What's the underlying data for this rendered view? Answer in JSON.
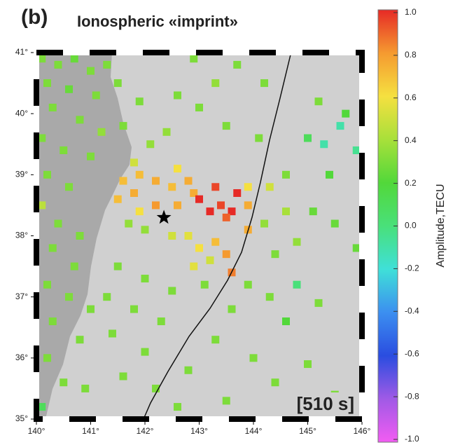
{
  "chart_data": {
    "type": "scatter",
    "panel_label": "(b)",
    "title": "Ionospheric «imprint»",
    "annotation": "[510 s]",
    "colorbar_label": "Amplitude,TECU",
    "xlim": [
      140,
      146
    ],
    "ylim": [
      35,
      41
    ],
    "xticks": [
      {
        "value": 140,
        "label": "140°"
      },
      {
        "value": 141,
        "label": "141°"
      },
      {
        "value": 142,
        "label": "142°"
      },
      {
        "value": 143,
        "label": "143°"
      },
      {
        "value": 144,
        "label": "144°"
      },
      {
        "value": 145,
        "label": "145°"
      },
      {
        "value": 146,
        "label": "146°"
      }
    ],
    "yticks": [
      {
        "value": 35,
        "label": "35°"
      },
      {
        "value": 36,
        "label": "36°"
      },
      {
        "value": 37,
        "label": "37°"
      },
      {
        "value": 38,
        "label": "38°"
      },
      {
        "value": 39,
        "label": "39°"
      },
      {
        "value": 40,
        "label": "40°"
      },
      {
        "value": 41,
        "label": "41°"
      }
    ],
    "clim": [
      -1,
      1
    ],
    "cticks": [
      {
        "value": 1,
        "label": "1.0"
      },
      0.8,
      0.6,
      0.4,
      0.2,
      {
        "value": 0,
        "label": "0.0"
      },
      -0.2,
      -0.4,
      -0.6,
      -0.8,
      {
        "value": -1,
        "label": "-1.0"
      }
    ],
    "colormap": [
      {
        "value": -1,
        "color": "#f25cf2"
      },
      {
        "value": -0.8,
        "color": "#a05ae6"
      },
      {
        "value": -0.6,
        "color": "#2a4de0"
      },
      {
        "value": -0.4,
        "color": "#3c8ff0"
      },
      {
        "value": -0.2,
        "color": "#3fe0d8"
      },
      {
        "value": 0,
        "color": "#49e07a"
      },
      {
        "value": 0.2,
        "color": "#52d83a"
      },
      {
        "value": 0.4,
        "color": "#a8e03a"
      },
      {
        "value": 0.6,
        "color": "#f5e040"
      },
      {
        "value": 0.8,
        "color": "#f59a30"
      },
      {
        "value": 1,
        "color": "#e62a26"
      }
    ],
    "epicenter": {
      "x": 142.35,
      "y": 38.3
    },
    "x": [
      140.1,
      140.4,
      140.7,
      141.0,
      141.3,
      140.2,
      140.6,
      141.1,
      140.3,
      140.8,
      141.2,
      140.1,
      140.5,
      141.0,
      140.2,
      140.6,
      140.1,
      140.4,
      140.8,
      140.3,
      140.7,
      140.2,
      140.6,
      141.0,
      140.3,
      140.8,
      140.2,
      140.5,
      140.1,
      140.9,
      141.5,
      141.9,
      141.6,
      142.1,
      141.8,
      141.6,
      141.9,
      142.2,
      141.5,
      141.8,
      142.5,
      142.8,
      142.6,
      142.9,
      141.9,
      142.2,
      142.6,
      143.0,
      143.2,
      143.4,
      143.6,
      143.7,
      143.3,
      143.5,
      142.8,
      143.0,
      143.3,
      143.5,
      143.6,
      142.9,
      143.2,
      142.5,
      142.0,
      141.7,
      143.9,
      143.9,
      143.9,
      144.3,
      144.6,
      144.8,
      144.4,
      145.1,
      145.4,
      145.0,
      145.3,
      145.6,
      145.9,
      145.5,
      145.9,
      144.2,
      143.7,
      143.3,
      142.9,
      142.6,
      143.0,
      143.5,
      142.4,
      144.1,
      144.6,
      145.2,
      145.7,
      141.5,
      142.0,
      142.5,
      141.3,
      141.8,
      142.3,
      141.4,
      142.0,
      141.6,
      142.2,
      142.8,
      143.3,
      143.6,
      143.9,
      144.3,
      144.6,
      144.8,
      145.2,
      144.0,
      144.4,
      145.0,
      145.5,
      143.5,
      142.6,
      143.1,
      144.2
    ],
    "y": [
      40.9,
      40.8,
      40.9,
      40.7,
      40.8,
      40.5,
      40.4,
      40.3,
      40.1,
      39.9,
      39.7,
      39.6,
      39.4,
      39.3,
      39.0,
      38.8,
      38.5,
      38.2,
      38.0,
      37.8,
      37.5,
      37.2,
      37.0,
      36.8,
      36.6,
      36.3,
      36.0,
      35.6,
      35.2,
      35.5,
      40.5,
      40.2,
      39.8,
      39.5,
      39.2,
      38.9,
      39.0,
      38.9,
      38.6,
      38.7,
      38.8,
      38.9,
      39.1,
      38.7,
      38.4,
      38.5,
      38.5,
      38.6,
      38.4,
      38.5,
      38.4,
      38.7,
      38.8,
      38.3,
      38.0,
      37.8,
      37.9,
      37.7,
      37.4,
      37.5,
      37.6,
      38.0,
      38.1,
      38.2,
      38.8,
      38.5,
      38.1,
      38.8,
      38.4,
      37.9,
      37.7,
      38.4,
      39.0,
      39.6,
      39.5,
      39.8,
      39.4,
      38.2,
      37.8,
      40.5,
      40.8,
      40.5,
      40.9,
      40.3,
      40.1,
      39.8,
      39.7,
      39.6,
      39.0,
      40.2,
      40.0,
      37.5,
      37.3,
      37.1,
      37.0,
      36.8,
      36.6,
      36.4,
      36.1,
      35.7,
      35.5,
      35.8,
      36.3,
      36.8,
      37.2,
      37.0,
      36.6,
      37.2,
      36.9,
      36.0,
      35.6,
      35.9,
      35.4,
      35.3,
      35.2,
      37.2,
      38.2
    ],
    "values": [
      0.3,
      0.3,
      0.25,
      0.3,
      0.3,
      0.3,
      0.25,
      0.3,
      0.3,
      0.3,
      0.35,
      0.3,
      0.3,
      0.3,
      0.3,
      0.3,
      0.45,
      0.3,
      0.3,
      0.3,
      0.3,
      0.3,
      0.3,
      0.3,
      0.3,
      0.3,
      0.3,
      0.3,
      0.1,
      0.3,
      0.3,
      0.3,
      0.3,
      0.35,
      0.5,
      0.7,
      0.7,
      0.75,
      0.7,
      0.75,
      0.7,
      0.75,
      0.6,
      0.75,
      0.6,
      0.8,
      0.75,
      1.0,
      1.0,
      0.95,
      1.0,
      1.0,
      0.95,
      0.9,
      0.55,
      0.6,
      0.7,
      0.8,
      0.85,
      0.55,
      0.5,
      0.5,
      0.35,
      0.35,
      0.6,
      0.75,
      0.75,
      0.5,
      0.4,
      0.35,
      0.3,
      0.25,
      0.2,
      0.1,
      -0.1,
      -0.1,
      -0.05,
      0.25,
      0.25,
      0.3,
      0.3,
      0.35,
      0.3,
      0.3,
      0.3,
      0.3,
      0.35,
      0.3,
      0.3,
      0.3,
      0.2,
      0.3,
      0.3,
      0.3,
      0.3,
      0.3,
      0.3,
      0.3,
      0.3,
      0.3,
      0.3,
      0.3,
      0.3,
      0.3,
      0.3,
      0.3,
      0.2,
      0.0,
      0.3,
      0.3,
      0.3,
      0.3,
      0.3,
      0.3,
      0.3,
      0.3,
      0.35
    ]
  }
}
